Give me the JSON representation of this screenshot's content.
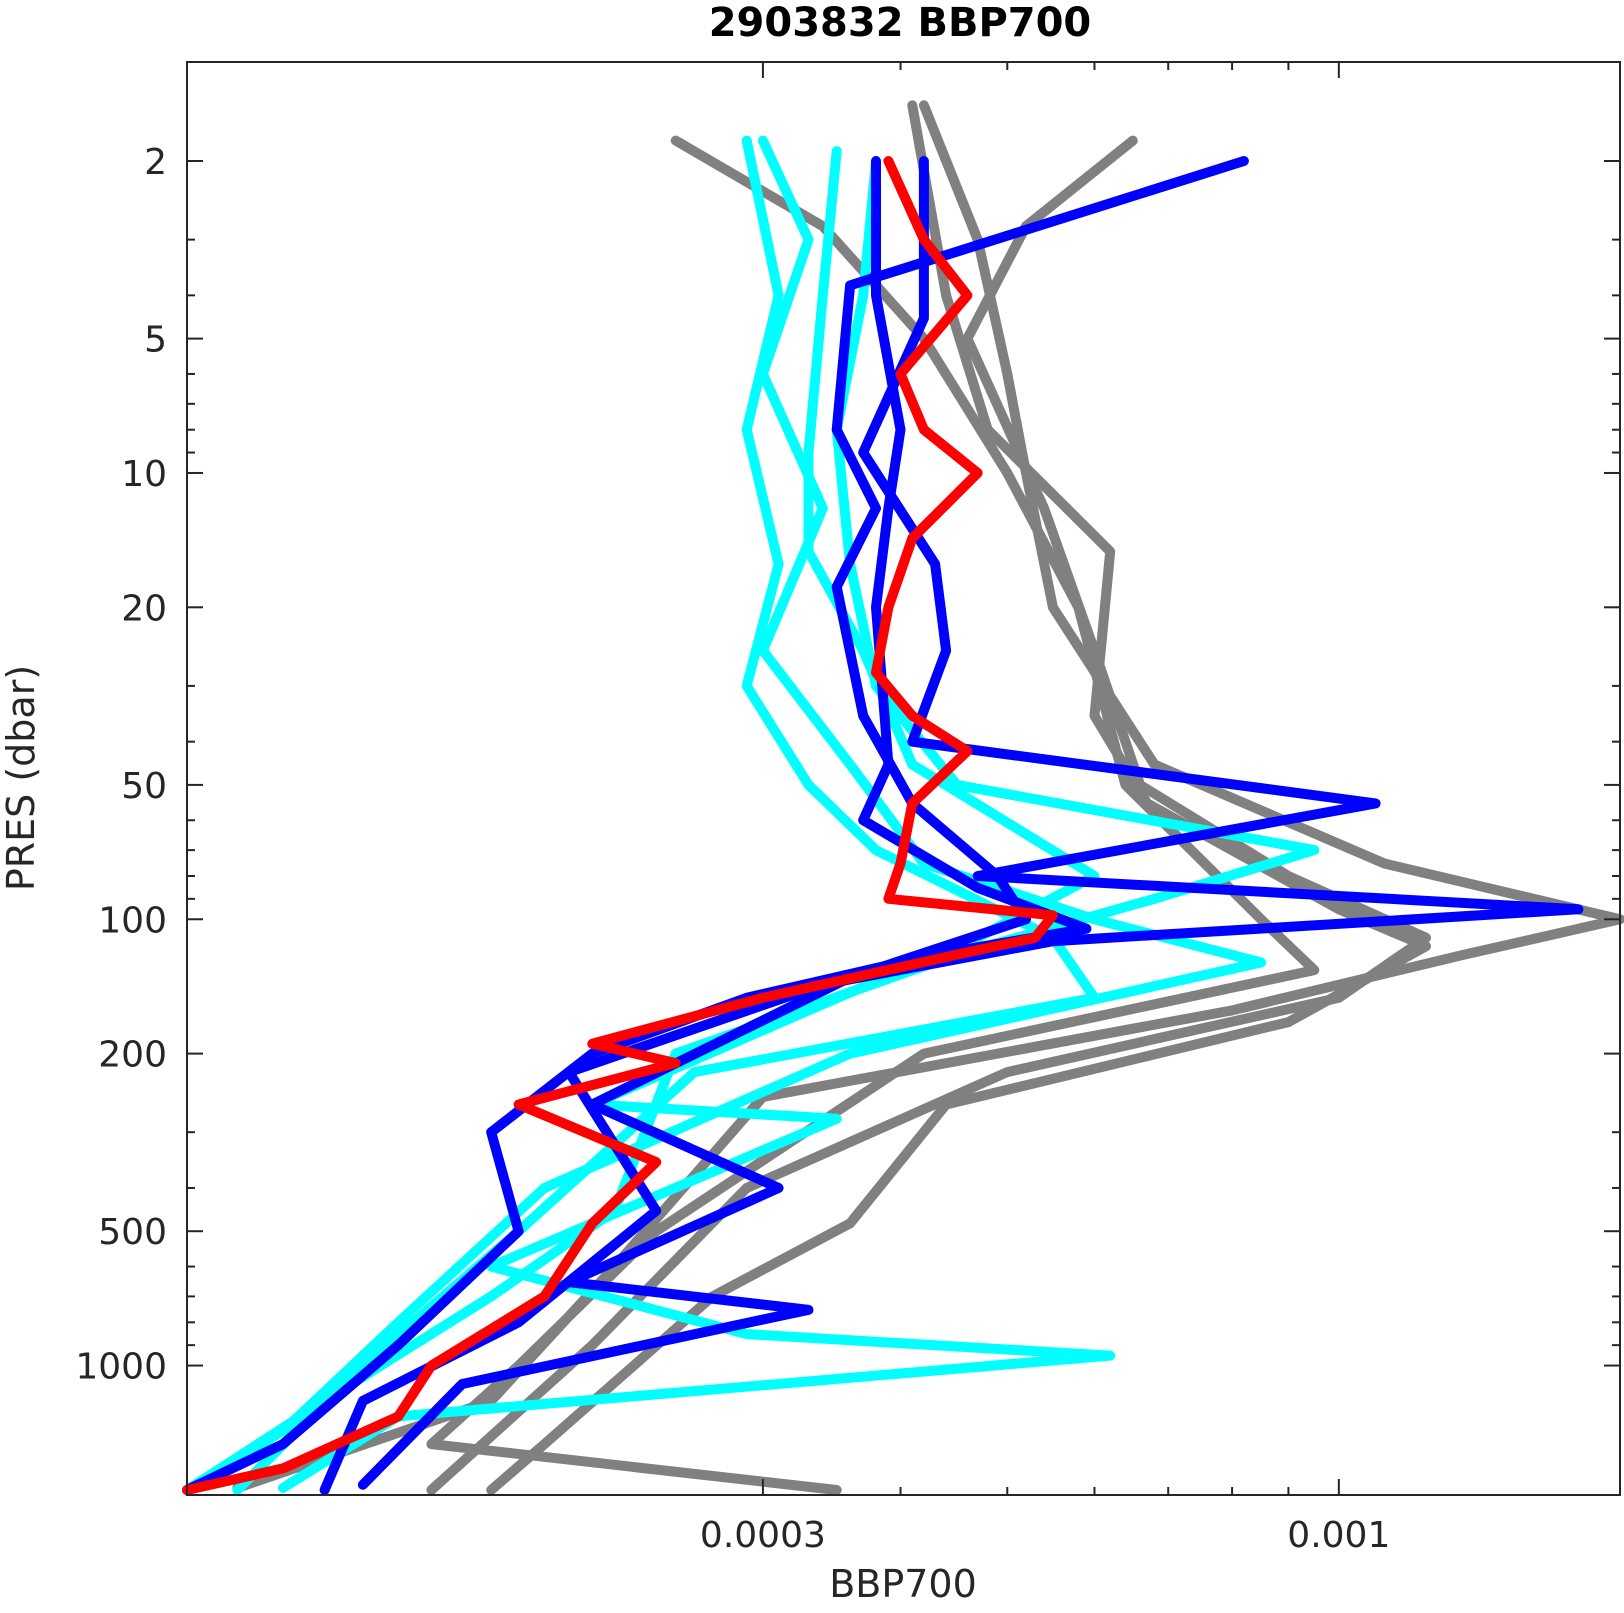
{
  "chart_data": {
    "type": "line",
    "title": "2903832 BBP700",
    "xlabel": "BBP700",
    "ylabel": "PRES (dbar)",
    "x_scale": "log",
    "y_scale": "log",
    "y_reversed": true,
    "xlim": [
      9e-05,
      0.0018
    ],
    "ylim": [
      1.2,
      1950
    ],
    "x_ticks": [
      {
        "value": 0.0003,
        "label": "0.0003"
      },
      {
        "value": 0.001,
        "label": "0.001"
      }
    ],
    "x_minor_ticks": [
      0.0004,
      0.0005,
      0.0006,
      0.0007,
      0.0008,
      0.0009
    ],
    "y_ticks": [
      {
        "value": 2,
        "label": "2"
      },
      {
        "value": 5,
        "label": "5"
      },
      {
        "value": 10,
        "label": "10"
      },
      {
        "value": 20,
        "label": "20"
      },
      {
        "value": 50,
        "label": "50"
      },
      {
        "value": 100,
        "label": "100"
      },
      {
        "value": 200,
        "label": "200"
      },
      {
        "value": 500,
        "label": "500"
      },
      {
        "value": 1000,
        "label": "1000"
      }
    ],
    "y_minor_ticks": [
      3,
      4,
      6,
      7,
      8,
      9,
      30,
      40,
      60,
      70,
      80,
      90,
      300,
      400,
      600,
      700,
      800,
      900
    ],
    "grid": false,
    "colors": {
      "gray": "#808080",
      "cyan": "#00ffff",
      "blue": "#0000ff",
      "red": "#ff0000"
    },
    "series": [
      {
        "color": "#808080",
        "points": [
          [
            0.00025,
            1.8
          ],
          [
            0.00034,
            2.8
          ],
          [
            0.00042,
            5
          ],
          [
            0.0005,
            10
          ],
          [
            0.00058,
            20
          ],
          [
            0.00064,
            50
          ],
          [
            0.00085,
            100
          ],
          [
            0.00095,
            130
          ],
          [
            0.00042,
            200
          ],
          [
            0.00024,
            500
          ],
          [
            0.00018,
            1000
          ],
          [
            0.00015,
            1500
          ],
          [
            0.00035,
            1900
          ]
        ]
      },
      {
        "color": "#808080",
        "points": [
          [
            0.00042,
            1.5
          ],
          [
            0.00047,
            3
          ],
          [
            0.0005,
            6
          ],
          [
            0.00052,
            10
          ],
          [
            0.00055,
            20
          ],
          [
            0.00068,
            45
          ],
          [
            0.0011,
            75
          ],
          [
            0.0018,
            100
          ],
          [
            0.0013,
            120
          ],
          [
            0.0008,
            160
          ],
          [
            0.0003,
            250
          ],
          [
            0.00022,
            600
          ],
          [
            0.00017,
            1200
          ],
          [
            0.0001,
            1880
          ]
        ]
      },
      {
        "color": "#808080",
        "points": [
          [
            0.00065,
            1.8
          ],
          [
            0.00052,
            2.8
          ],
          [
            0.00046,
            5
          ],
          [
            0.00054,
            12
          ],
          [
            0.0006,
            25
          ],
          [
            0.00066,
            50
          ],
          [
            0.0009,
            80
          ],
          [
            0.0012,
            110
          ],
          [
            0.001,
            150
          ],
          [
            0.0005,
            220
          ],
          [
            0.00029,
            400
          ],
          [
            0.00021,
            900
          ],
          [
            0.00015,
            1900
          ]
        ]
      },
      {
        "color": "#808080",
        "points": [
          [
            0.00041,
            1.5
          ],
          [
            0.00044,
            4
          ],
          [
            0.00048,
            8
          ],
          [
            0.00062,
            15
          ],
          [
            0.0006,
            35
          ],
          [
            0.00067,
            55
          ],
          [
            0.001,
            95
          ],
          [
            0.0012,
            115
          ],
          [
            0.0009,
            170
          ],
          [
            0.00044,
            260
          ],
          [
            0.00036,
            480
          ],
          [
            0.00027,
            700
          ],
          [
            0.00019,
            1500
          ],
          [
            0.00017,
            1900
          ]
        ]
      },
      {
        "color": "#00ffff",
        "points": [
          [
            0.0003,
            1.8
          ],
          [
            0.00033,
            3
          ],
          [
            0.0003,
            6
          ],
          [
            0.00034,
            12
          ],
          [
            0.0003,
            25
          ],
          [
            0.00036,
            45
          ],
          [
            0.00042,
            75
          ],
          [
            0.0006,
            100
          ],
          [
            0.00085,
            125
          ],
          [
            0.00036,
            200
          ],
          [
            0.00019,
            400
          ],
          [
            0.00014,
            800
          ],
          [
            0.00011,
            1400
          ],
          [
            9e-05,
            1900
          ]
        ]
      },
      {
        "color": "#00ffff",
        "points": [
          [
            0.00029,
            1.8
          ],
          [
            0.00031,
            4
          ],
          [
            0.00029,
            8
          ],
          [
            0.00031,
            16
          ],
          [
            0.00029,
            30
          ],
          [
            0.00033,
            50
          ],
          [
            0.00038,
            70
          ],
          [
            0.00055,
            110
          ],
          [
            0.0006,
            150
          ],
          [
            0.00026,
            220
          ],
          [
            0.00018,
            500
          ],
          [
            0.00013,
            1000
          ],
          [
            0.0001,
            1900
          ]
        ]
      },
      {
        "color": "#00ffff",
        "points": [
          [
            0.00038,
            2
          ],
          [
            0.00037,
            4
          ],
          [
            0.00035,
            8
          ],
          [
            0.00036,
            16
          ],
          [
            0.00038,
            30
          ],
          [
            0.00045,
            50
          ],
          [
            0.00095,
            70
          ],
          [
            0.00068,
            90
          ],
          [
            0.00045,
            120
          ],
          [
            0.00025,
            200
          ],
          [
            0.00022,
            450
          ],
          [
            0.00017,
            700
          ],
          [
            0.00012,
            1200
          ],
          [
            9e-05,
            1900
          ]
        ]
      },
      {
        "color": "#00ffff",
        "points": [
          [
            0.00035,
            1.9
          ],
          [
            0.00034,
            4
          ],
          [
            0.00033,
            9
          ],
          [
            0.00033,
            15
          ],
          [
            0.00037,
            25
          ],
          [
            0.00041,
            45
          ],
          [
            0.0006,
            80
          ],
          [
            0.00047,
            110
          ],
          [
            0.00033,
            160
          ],
          [
            0.00021,
            260
          ],
          [
            0.00035,
            280
          ],
          [
            0.00017,
            600
          ],
          [
            0.00029,
            850
          ],
          [
            0.00062,
            950
          ],
          [
            0.00014,
            1300
          ],
          [
            0.00011,
            1880
          ]
        ]
      },
      {
        "color": "#0000ff",
        "points": [
          [
            0.00038,
            2
          ],
          [
            0.00038,
            4
          ],
          [
            0.0004,
            8
          ],
          [
            0.00039,
            12
          ],
          [
            0.00038,
            20
          ],
          [
            0.00039,
            45
          ],
          [
            0.00037,
            60
          ],
          [
            0.00047,
            85
          ],
          [
            0.00059,
            105
          ],
          [
            0.00043,
            120
          ],
          [
            0.00029,
            150
          ],
          [
            0.00021,
            200
          ],
          [
            0.00017,
            300
          ],
          [
            0.00018,
            500
          ],
          [
            0.00014,
            900
          ],
          [
            0.00011,
            1500
          ],
          [
            9e-05,
            1900
          ]
        ]
      },
      {
        "color": "#0000ff",
        "points": [
          [
            0.00042,
            2
          ],
          [
            0.00042,
            4.5
          ],
          [
            0.00037,
            9
          ],
          [
            0.00043,
            16
          ],
          [
            0.00044,
            25
          ],
          [
            0.00041,
            40
          ],
          [
            0.00108,
            55
          ],
          [
            0.00047,
            80
          ],
          [
            0.00165,
            95
          ],
          [
            0.00055,
            112
          ],
          [
            0.00034,
            140
          ],
          [
            0.0002,
            220
          ],
          [
            0.00024,
            450
          ],
          [
            0.00018,
            800
          ],
          [
            0.00013,
            1200
          ],
          [
            0.00012,
            1900
          ]
        ]
      },
      {
        "color": "#0000ff",
        "points": [
          [
            0.00082,
            2
          ],
          [
            0.00036,
            3.8
          ],
          [
            0.00035,
            8
          ],
          [
            0.00038,
            12
          ],
          [
            0.00035,
            18
          ],
          [
            0.00037,
            35
          ],
          [
            0.00041,
            55
          ],
          [
            0.00049,
            80
          ],
          [
            0.00052,
            100
          ],
          [
            0.00036,
            135
          ],
          [
            0.00021,
            260
          ],
          [
            0.00031,
            400
          ],
          [
            0.0002,
            650
          ],
          [
            0.00033,
            750
          ],
          [
            0.00016,
            1100
          ],
          [
            0.00013,
            1850
          ]
        ]
      },
      {
        "color": "#ff0000",
        "points": [
          [
            0.00039,
            2
          ],
          [
            0.00042,
            3
          ],
          [
            0.00046,
            4
          ],
          [
            0.0004,
            6
          ],
          [
            0.00042,
            8
          ],
          [
            0.00047,
            10
          ],
          [
            0.00041,
            14
          ],
          [
            0.00039,
            20
          ],
          [
            0.00038,
            28
          ],
          [
            0.00041,
            35
          ],
          [
            0.00046,
            42
          ],
          [
            0.00041,
            55
          ],
          [
            0.0004,
            75
          ],
          [
            0.00039,
            90
          ],
          [
            0.00055,
            98
          ],
          [
            0.00053,
            110
          ],
          [
            0.00045,
            120
          ],
          [
            0.0003,
            150
          ],
          [
            0.00021,
            190
          ],
          [
            0.00025,
            210
          ],
          [
            0.00018,
            260
          ],
          [
            0.00024,
            350
          ],
          [
            0.00021,
            480
          ],
          [
            0.00019,
            700
          ],
          [
            0.00015,
            1000
          ],
          [
            0.00014,
            1300
          ],
          [
            0.00011,
            1700
          ],
          [
            9e-05,
            1900
          ]
        ]
      }
    ]
  }
}
